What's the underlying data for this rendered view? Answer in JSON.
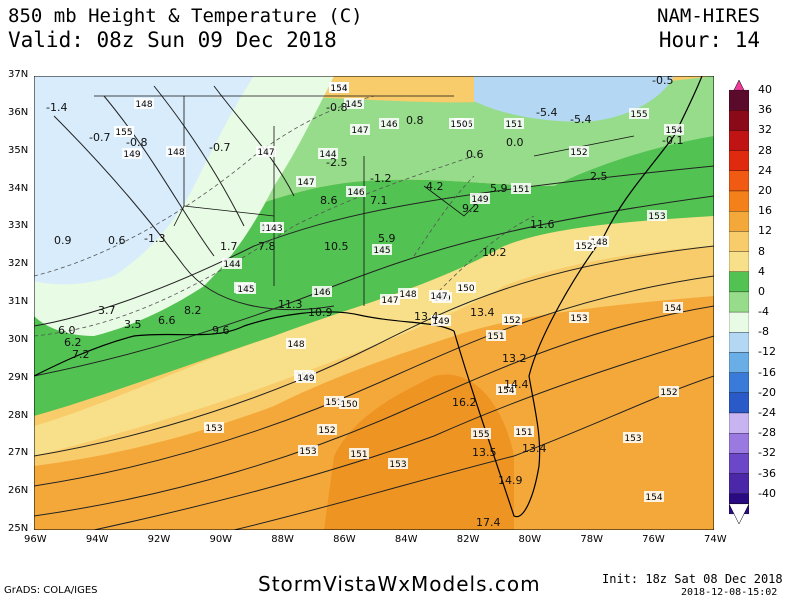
{
  "header": {
    "title": "850 mb Height & Temperature (C)",
    "valid": "Valid: 08z Sun 09 Dec 2018",
    "model": "NAM-HIRES",
    "hour": "Hour: 14"
  },
  "map": {
    "lat_labels": [
      "37N",
      "36N",
      "35N",
      "34N",
      "33N",
      "32N",
      "31N",
      "30N",
      "29N",
      "28N",
      "27N",
      "26N",
      "25N"
    ],
    "lon_labels": [
      "96W",
      "94W",
      "92W",
      "90W",
      "88W",
      "86W",
      "84W",
      "82W",
      "80W",
      "78W",
      "76W",
      "74W"
    ],
    "height_labels": [
      "148",
      "150",
      "149",
      "148",
      "145",
      "144",
      "147",
      "146",
      "147",
      "146",
      "150",
      "151",
      "148",
      "152",
      "155",
      "154",
      "143",
      "144",
      "145",
      "147",
      "146",
      "145",
      "149",
      "151",
      "148",
      "152",
      "153",
      "143",
      "145",
      "146",
      "147",
      "148",
      "150",
      "149",
      "152",
      "153",
      "147",
      "149",
      "151",
      "154",
      "148",
      "150",
      "151",
      "152",
      "153",
      "149",
      "150",
      "151",
      "153",
      "154",
      "155",
      "151",
      "152",
      "153",
      "154",
      "153",
      "154",
      "155"
    ],
    "temp_labels": [
      "-1.4",
      "-0.7",
      "-0.8",
      "-0.7",
      "-0.8",
      "0.8",
      "-5.4",
      "-5.4",
      "-0.5",
      "-0.1",
      "-2.5",
      "-1.2",
      "0.6",
      "0.0",
      "0.9",
      "0.6",
      "-1.3",
      "1.7",
      "7.8",
      "8.6",
      "7.1",
      "4.2",
      "5.9",
      "9.2",
      "2.5",
      "10.5",
      "5.9",
      "11.6",
      "10.2",
      "3.7",
      "3.5",
      "6.6",
      "8.2",
      "6.0",
      "6.2",
      "7.2",
      "9.6",
      "11.3",
      "10.9",
      "13.4",
      "13.4",
      "13.2",
      "14.4",
      "16.2",
      "13.5",
      "13.4",
      "14.9",
      "17.4"
    ],
    "temp_colors": {
      "blue_light": "#b4d8f4",
      "blue_lighter": "#d8ecfb",
      "near_zero": "#e8fbe4",
      "green_light": "#96dc8a",
      "green": "#52c252",
      "yellow": "#f8e08a",
      "yellow_orange": "#f8cc6a",
      "orange": "#f4a83a",
      "orange_deep": "#ee9422"
    }
  },
  "colorbar": {
    "labels": [
      "40",
      "36",
      "32",
      "28",
      "24",
      "20",
      "16",
      "12",
      "8",
      "4",
      "0",
      "-4",
      "-8",
      "-12",
      "-16",
      "-20",
      "-24",
      "-28",
      "-32",
      "-36",
      "-40"
    ],
    "colors": [
      "#5a0a2a",
      "#8a0a1a",
      "#c01414",
      "#e02a10",
      "#f05a12",
      "#f4801a",
      "#f4a83a",
      "#f8cc6a",
      "#f8e08a",
      "#52c252",
      "#96dc8a",
      "#e8fbe4",
      "#b4d8f4",
      "#6aaee8",
      "#3a7ad8",
      "#2a5ac8",
      "#c8b4f0",
      "#9a7ae0",
      "#6a48c8",
      "#4a28a8",
      "#2a0a80"
    ]
  },
  "footer": {
    "grads": "GrADS: COLA/IGES",
    "site": "StormVistaWxModels.com",
    "init": "Init: 18z Sat 08 Dec 2018",
    "stamp": "2018-12-08-15:02"
  }
}
